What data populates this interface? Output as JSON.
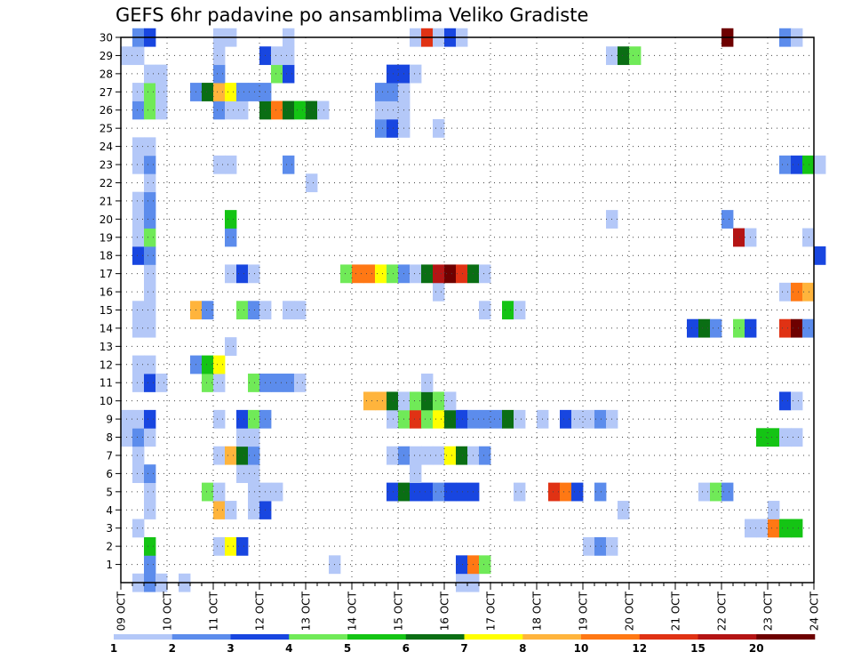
{
  "chart_data": {
    "type": "heatmap",
    "title": "GEFS 6hr padavine po ansamblima Veliko Gradiste",
    "xlabel": "",
    "ylabel": "",
    "x_ticks": [
      "09 OCT",
      "10 OCT",
      "11 OCT",
      "12 OCT",
      "13 OCT",
      "14 OCT",
      "15 OCT",
      "16 OCT",
      "17 OCT",
      "18 OCT",
      "19 OCT",
      "20 OCT",
      "21 OCT",
      "22 OCT",
      "23 OCT",
      "24 OCT"
    ],
    "y_ticks": [
      "1",
      "2",
      "3",
      "4",
      "5",
      "6",
      "7",
      "8",
      "9",
      "10",
      "11",
      "12",
      "13",
      "14",
      "15",
      "16",
      "17",
      "18",
      "19",
      "20",
      "21",
      "22",
      "23",
      "24",
      "25",
      "26",
      "27",
      "28",
      "29",
      "30"
    ],
    "ylim": [
      0,
      30
    ],
    "grid": true,
    "colorbar": {
      "labels": [
        "1",
        "2",
        "3",
        "4",
        "5",
        "6",
        "7",
        "8",
        "10",
        "12",
        "15",
        "20"
      ],
      "colors": [
        "#b4c8f8",
        "#5c8cec",
        "#1846e0",
        "#70ea58",
        "#14c414",
        "#0a6e14",
        "#ffff00",
        "#ffb43c",
        "#ff7814",
        "#e03214",
        "#b41414",
        "#6e0000"
      ]
    },
    "cell_rows": [
      {
        "member": 0,
        "cells": [
          [
            1,
            1
          ],
          [
            2,
            2
          ],
          [
            3,
            1
          ],
          [
            5,
            1
          ],
          [
            29,
            1
          ],
          [
            30,
            1
          ]
        ]
      },
      {
        "member": 1,
        "cells": [
          [
            2,
            2
          ],
          [
            18,
            1
          ],
          [
            29,
            3
          ],
          [
            30,
            9
          ],
          [
            31,
            4
          ]
        ]
      },
      {
        "member": 2,
        "cells": [
          [
            2,
            5
          ],
          [
            8,
            1
          ],
          [
            9,
            7
          ],
          [
            10,
            3
          ],
          [
            40,
            1
          ],
          [
            41,
            2
          ],
          [
            42,
            1
          ]
        ]
      },
      {
        "member": 3,
        "cells": [
          [
            1,
            1
          ],
          [
            54,
            1
          ],
          [
            55,
            1
          ],
          [
            56,
            9
          ],
          [
            57,
            5
          ],
          [
            58,
            5
          ]
        ]
      },
      {
        "member": 4,
        "cells": [
          [
            2,
            1
          ],
          [
            8,
            8
          ],
          [
            9,
            1
          ],
          [
            11,
            1
          ],
          [
            12,
            3
          ],
          [
            43,
            1
          ],
          [
            56,
            1
          ]
        ]
      },
      {
        "member": 5,
        "cells": [
          [
            2,
            1
          ],
          [
            7,
            4
          ],
          [
            8,
            1
          ],
          [
            11,
            1
          ],
          [
            12,
            1
          ],
          [
            13,
            1
          ],
          [
            23,
            3
          ],
          [
            24,
            6
          ],
          [
            25,
            3
          ],
          [
            26,
            3
          ],
          [
            27,
            2
          ],
          [
            28,
            3
          ],
          [
            29,
            3
          ],
          [
            30,
            3
          ],
          [
            34,
            1
          ],
          [
            37,
            10
          ],
          [
            38,
            9
          ],
          [
            39,
            3
          ],
          [
            41,
            2
          ],
          [
            50,
            1
          ],
          [
            51,
            4
          ],
          [
            52,
            2
          ]
        ]
      },
      {
        "member": 6,
        "cells": [
          [
            1,
            1
          ],
          [
            2,
            2
          ],
          [
            10,
            1
          ],
          [
            11,
            1
          ],
          [
            25,
            1
          ]
        ]
      },
      {
        "member": 7,
        "cells": [
          [
            1,
            1
          ],
          [
            8,
            1
          ],
          [
            9,
            8
          ],
          [
            10,
            6
          ],
          [
            11,
            2
          ],
          [
            23,
            1
          ],
          [
            24,
            2
          ],
          [
            25,
            1
          ],
          [
            26,
            1
          ],
          [
            27,
            1
          ],
          [
            28,
            7
          ],
          [
            29,
            6
          ],
          [
            30,
            1
          ],
          [
            31,
            2
          ]
        ]
      },
      {
        "member": 8,
        "cells": [
          [
            0,
            1
          ],
          [
            1,
            2
          ],
          [
            2,
            1
          ],
          [
            10,
            1
          ],
          [
            11,
            1
          ],
          [
            55,
            5
          ],
          [
            56,
            5
          ],
          [
            57,
            1
          ],
          [
            58,
            1
          ]
        ]
      },
      {
        "member": 9,
        "cells": [
          [
            0,
            1
          ],
          [
            1,
            1
          ],
          [
            2,
            3
          ],
          [
            8,
            1
          ],
          [
            10,
            3
          ],
          [
            11,
            4
          ],
          [
            12,
            2
          ],
          [
            23,
            1
          ],
          [
            24,
            4
          ],
          [
            25,
            10
          ],
          [
            26,
            4
          ],
          [
            27,
            7
          ],
          [
            28,
            6
          ],
          [
            29,
            3
          ],
          [
            30,
            2
          ],
          [
            31,
            2
          ],
          [
            32,
            2
          ],
          [
            33,
            6
          ],
          [
            34,
            1
          ],
          [
            36,
            1
          ],
          [
            38,
            3
          ],
          [
            39,
            1
          ],
          [
            40,
            1
          ],
          [
            41,
            2
          ],
          [
            42,
            1
          ]
        ]
      },
      {
        "member": 10,
        "cells": [
          [
            21,
            8
          ],
          [
            22,
            8
          ],
          [
            23,
            6
          ],
          [
            24,
            1
          ],
          [
            25,
            4
          ],
          [
            26,
            6
          ],
          [
            27,
            4
          ],
          [
            28,
            1
          ],
          [
            57,
            3
          ],
          [
            58,
            1
          ]
        ]
      },
      {
        "member": 11,
        "cells": [
          [
            1,
            1
          ],
          [
            2,
            3
          ],
          [
            3,
            1
          ],
          [
            7,
            4
          ],
          [
            8,
            1
          ],
          [
            11,
            4
          ],
          [
            12,
            2
          ],
          [
            13,
            2
          ],
          [
            14,
            2
          ],
          [
            15,
            1
          ],
          [
            26,
            1
          ]
        ]
      },
      {
        "member": 12,
        "cells": [
          [
            1,
            1
          ],
          [
            2,
            1
          ],
          [
            6,
            2
          ],
          [
            7,
            5
          ],
          [
            8,
            7
          ]
        ]
      },
      {
        "member": 13,
        "cells": [
          [
            9,
            1
          ]
        ]
      },
      {
        "member": 14,
        "cells": [
          [
            1,
            1
          ],
          [
            2,
            1
          ],
          [
            49,
            3
          ],
          [
            50,
            6
          ],
          [
            51,
            2
          ],
          [
            53,
            4
          ],
          [
            54,
            3
          ],
          [
            57,
            10
          ],
          [
            58,
            12
          ],
          [
            59,
            2
          ]
        ]
      },
      {
        "member": 15,
        "cells": [
          [
            1,
            1
          ],
          [
            2,
            1
          ],
          [
            6,
            8
          ],
          [
            7,
            2
          ],
          [
            10,
            4
          ],
          [
            11,
            2
          ],
          [
            12,
            1
          ],
          [
            14,
            1
          ],
          [
            15,
            1
          ],
          [
            31,
            1
          ],
          [
            33,
            5
          ],
          [
            34,
            1
          ]
        ]
      },
      {
        "member": 16,
        "cells": [
          [
            2,
            1
          ],
          [
            27,
            1
          ],
          [
            57,
            1
          ],
          [
            58,
            9
          ],
          [
            59,
            8
          ]
        ]
      },
      {
        "member": 17,
        "cells": [
          [
            2,
            1
          ],
          [
            9,
            1
          ],
          [
            10,
            3
          ],
          [
            11,
            1
          ],
          [
            19,
            4
          ],
          [
            20,
            9
          ],
          [
            21,
            9
          ],
          [
            22,
            7
          ],
          [
            23,
            4
          ],
          [
            24,
            2
          ],
          [
            25,
            1
          ],
          [
            26,
            6
          ],
          [
            27,
            11
          ],
          [
            28,
            12
          ],
          [
            29,
            10
          ],
          [
            30,
            6
          ],
          [
            31,
            1
          ]
        ]
      },
      {
        "member": 18,
        "cells": [
          [
            1,
            3
          ],
          [
            2,
            2
          ],
          [
            60,
            3
          ]
        ]
      },
      {
        "member": 19,
        "cells": [
          [
            1,
            1
          ],
          [
            2,
            4
          ],
          [
            9,
            2
          ],
          [
            53,
            11
          ],
          [
            54,
            1
          ],
          [
            59,
            1
          ]
        ]
      },
      {
        "member": 20,
        "cells": [
          [
            1,
            1
          ],
          [
            2,
            2
          ],
          [
            9,
            5
          ],
          [
            42,
            1
          ],
          [
            52,
            2
          ]
        ]
      },
      {
        "member": 21,
        "cells": [
          [
            1,
            1
          ],
          [
            2,
            2
          ]
        ]
      },
      {
        "member": 22,
        "cells": [
          [
            2,
            1
          ],
          [
            16,
            1
          ]
        ]
      },
      {
        "member": 23,
        "cells": [
          [
            1,
            1
          ],
          [
            2,
            2
          ],
          [
            8,
            1
          ],
          [
            9,
            1
          ],
          [
            14,
            2
          ],
          [
            57,
            2
          ],
          [
            58,
            3
          ],
          [
            59,
            5
          ],
          [
            60,
            1
          ]
        ]
      },
      {
        "member": 24,
        "cells": [
          [
            1,
            1
          ],
          [
            2,
            1
          ]
        ]
      },
      {
        "member": 25,
        "cells": [
          [
            22,
            2
          ],
          [
            23,
            3
          ],
          [
            24,
            1
          ],
          [
            27,
            1
          ]
        ]
      },
      {
        "member": 26,
        "cells": [
          [
            1,
            2
          ],
          [
            2,
            4
          ],
          [
            3,
            1
          ],
          [
            8,
            2
          ],
          [
            9,
            1
          ],
          [
            10,
            1
          ],
          [
            12,
            6
          ],
          [
            13,
            9
          ],
          [
            14,
            6
          ],
          [
            15,
            5
          ],
          [
            16,
            6
          ],
          [
            17,
            1
          ],
          [
            22,
            1
          ],
          [
            23,
            1
          ],
          [
            24,
            1
          ]
        ]
      },
      {
        "member": 27,
        "cells": [
          [
            1,
            1
          ],
          [
            2,
            4
          ],
          [
            3,
            1
          ],
          [
            6,
            2
          ],
          [
            7,
            6
          ],
          [
            8,
            8
          ],
          [
            9,
            7
          ],
          [
            10,
            2
          ],
          [
            11,
            2
          ],
          [
            12,
            2
          ],
          [
            22,
            2
          ],
          [
            23,
            2
          ],
          [
            24,
            1
          ]
        ]
      },
      {
        "member": 28,
        "cells": [
          [
            2,
            1
          ],
          [
            3,
            1
          ],
          [
            8,
            2
          ],
          [
            13,
            4
          ],
          [
            14,
            3
          ],
          [
            23,
            3
          ],
          [
            24,
            3
          ],
          [
            25,
            1
          ]
        ]
      },
      {
        "member": 29,
        "cells": [
          [
            0,
            1
          ],
          [
            1,
            1
          ],
          [
            8,
            1
          ],
          [
            12,
            3
          ],
          [
            13,
            1
          ],
          [
            14,
            1
          ],
          [
            42,
            1
          ],
          [
            43,
            6
          ],
          [
            44,
            4
          ]
        ]
      },
      {
        "member": 30,
        "cells": [
          [
            1,
            2
          ],
          [
            2,
            3
          ],
          [
            8,
            1
          ],
          [
            9,
            1
          ],
          [
            14,
            1
          ],
          [
            25,
            1
          ],
          [
            26,
            10
          ],
          [
            27,
            1
          ],
          [
            28,
            3
          ],
          [
            29,
            1
          ],
          [
            52,
            12
          ],
          [
            57,
            2
          ],
          [
            58,
            1
          ]
        ]
      }
    ]
  }
}
